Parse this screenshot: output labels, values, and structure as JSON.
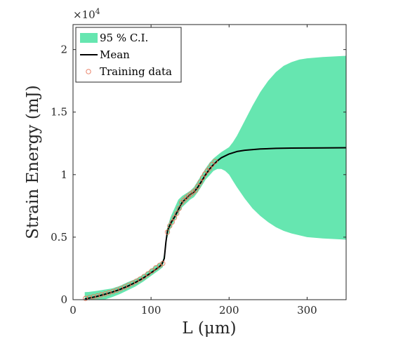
{
  "chart_data": {
    "type": "line",
    "xlabel": "L (μm)",
    "ylabel": "Strain Energy (mJ)",
    "xlim": [
      0,
      350
    ],
    "ylim": [
      0,
      22000
    ],
    "x_ticks": [
      "0",
      "100",
      "200",
      "300"
    ],
    "y_ticks": [
      "0",
      "0.5",
      "1",
      "1.5",
      "2"
    ],
    "y_exponent_base": "×10",
    "y_exponent_power": "4",
    "y_tick_scale": 10000,
    "legend_position": "top-left",
    "grid": false,
    "colors": {
      "ci_fill": "#66e6b0",
      "mean_line": "#000000",
      "training_marker": "#e8765a"
    },
    "series": [
      {
        "name": "95 % C.I.",
        "kind": "band",
        "x": [
          15,
          20,
          30,
          40,
          50,
          60,
          70,
          80,
          90,
          100,
          110,
          115,
          118,
          120,
          122,
          125,
          130,
          135,
          140,
          145,
          150,
          155,
          160,
          165,
          170,
          175,
          180,
          185,
          190,
          195,
          200,
          205,
          210,
          220,
          230,
          240,
          250,
          260,
          270,
          280,
          290,
          300,
          320,
          350
        ],
        "lower": [
          -400,
          -280,
          -150,
          0,
          200,
          450,
          750,
          1050,
          1450,
          1900,
          2350,
          2600,
          3600,
          4800,
          5200,
          5700,
          6300,
          6900,
          7400,
          7700,
          8000,
          8200,
          8600,
          9100,
          9600,
          9950,
          10300,
          10450,
          10450,
          10300,
          10000,
          9500,
          9000,
          8100,
          7300,
          6700,
          6200,
          5800,
          5500,
          5300,
          5150,
          5000,
          4900,
          4800
        ],
        "upper": [
          600,
          620,
          700,
          800,
          900,
          1100,
          1400,
          1650,
          2000,
          2450,
          2900,
          3100,
          4000,
          5600,
          6000,
          6600,
          7300,
          8000,
          8300,
          8500,
          8700,
          9000,
          9500,
          10000,
          10500,
          10950,
          11300,
          11550,
          11800,
          12000,
          12200,
          12600,
          13100,
          14300,
          15500,
          16600,
          17500,
          18200,
          18700,
          19000,
          19200,
          19300,
          19400,
          19500
        ]
      },
      {
        "name": "Mean",
        "kind": "line",
        "x": [
          15,
          20,
          30,
          40,
          50,
          60,
          70,
          80,
          90,
          100,
          110,
          114,
          117,
          119,
          121,
          123,
          126,
          130,
          135,
          140,
          145,
          150,
          155,
          160,
          165,
          170,
          175,
          180,
          185,
          190,
          200,
          210,
          220,
          240,
          260,
          280,
          300,
          320,
          350
        ],
        "y": [
          50,
          120,
          250,
          420,
          600,
          820,
          1080,
          1380,
          1730,
          2150,
          2600,
          2850,
          3300,
          4600,
          5500,
          5800,
          6200,
          6600,
          7200,
          7800,
          8100,
          8400,
          8600,
          9000,
          9500,
          10000,
          10450,
          10800,
          11100,
          11350,
          11650,
          11850,
          11950,
          12050,
          12100,
          12120,
          12130,
          12140,
          12150
        ]
      },
      {
        "name": "Training data",
        "kind": "scatter",
        "x": [
          16,
          21,
          26,
          31,
          36,
          41,
          46,
          51,
          56,
          61,
          66,
          71,
          76,
          81,
          86,
          91,
          96,
          101,
          106,
          111,
          115,
          121,
          124,
          127,
          130,
          133,
          136,
          139,
          142,
          145,
          148,
          151,
          154,
          157,
          160,
          163,
          166,
          169,
          172,
          175,
          178,
          182
        ],
        "y": [
          100,
          160,
          230,
          300,
          380,
          460,
          550,
          650,
          760,
          880,
          1010,
          1150,
          1300,
          1470,
          1650,
          1850,
          2070,
          2300,
          2550,
          2750,
          2900,
          5400,
          5900,
          6200,
          6550,
          6900,
          7300,
          7750,
          7950,
          8150,
          8300,
          8450,
          8600,
          8750,
          9050,
          9400,
          9750,
          10050,
          10300,
          10500,
          10800,
          11050
        ]
      }
    ]
  }
}
